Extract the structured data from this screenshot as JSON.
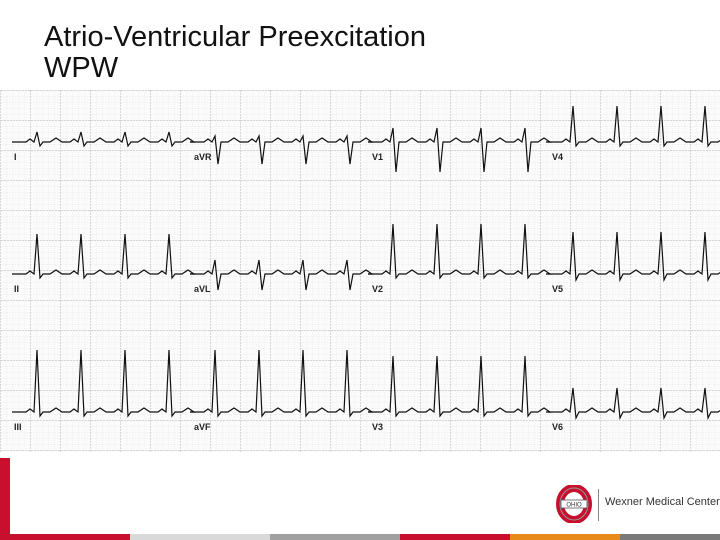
{
  "slide": {
    "title_line1": "Atrio-Ventricular Preexcitation",
    "title_line2": "WPW"
  },
  "ecg": {
    "lead_labels": {
      "row1": [
        "I",
        "aVR",
        "V1",
        "V4"
      ],
      "row2": [
        "II",
        "aVL",
        "V2",
        "V5"
      ],
      "row3": [
        "III",
        "aVF",
        "V3",
        "V6"
      ]
    },
    "grid_minor_color": "#b8b8b8",
    "grid_major_color": "#8a8a8a",
    "trace_color": "#111111"
  },
  "logo": {
    "text": "Wexner Medical Center",
    "icon": "block-o-icon"
  },
  "colors": {
    "accent_red": "#c8102e",
    "footer": [
      "#c8102e",
      "#d9d9d9",
      "#a0a0a0",
      "#c8102e",
      "#e88a1a",
      "#7a7a7a"
    ]
  }
}
